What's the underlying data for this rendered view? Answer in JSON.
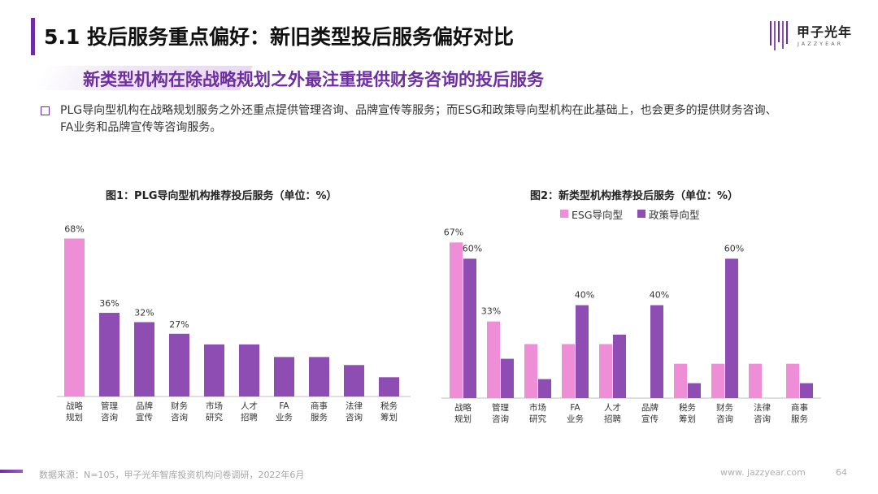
{
  "header": {
    "title": "5.1 投后服务重点偏好：新旧类型投后服务偏好对比",
    "logo_text": "甲子光年",
    "logo_sub": "JAZZYEAR"
  },
  "subtitle": "新类型机构在除战略规划之外最注重提供财务咨询的投后服务",
  "bullet": {
    "line1": "PLG导向型机构在战略规划服务之外还重点提供管理咨询、品牌宣传等服务；而ESG和政策导向型机构在此基础上，也会更多的提供财务咨询、",
    "line2": "FA业务和品牌宣传等咨询服务。"
  },
  "chart_data": [
    {
      "type": "bar",
      "title": "图1：PLG导向型机构推荐投后服务（单位：%）",
      "categories": [
        [
          "战略",
          "规划"
        ],
        [
          "管理",
          "咨询"
        ],
        [
          "品牌",
          "宣传"
        ],
        [
          "财务",
          "咨询"
        ],
        [
          "市场",
          "研究"
        ],
        [
          "人才",
          "招聘"
        ],
        [
          "FA",
          "业务"
        ],
        [
          "商事",
          "服务"
        ],
        [
          "法律",
          "咨询"
        ],
        [
          "税务",
          "筹划"
        ]
      ],
      "series": [
        {
          "values": [
            68,
            36,
            32,
            27,
            null,
            null,
            null,
            null,
            null,
            null
          ],
          "colors": [
            "#ee8ed6",
            "#8e4db3",
            "#8e4db3",
            "#8e4db3",
            "#8e4db3",
            "#8e4db3",
            "#8e4db3",
            "#8e4db3",
            "#8e4db3",
            "#8e4db3"
          ]
        }
      ],
      "data_labels": [
        "68%",
        "36%",
        "32%",
        "27%",
        "",
        "",
        "",
        "",
        "",
        ""
      ]
    },
    {
      "type": "bar",
      "title": "图2：新类型机构推荐投后服务（单位：%）",
      "categories": [
        [
          "战略",
          "规划"
        ],
        [
          "管理",
          "咨询"
        ],
        [
          "市场",
          "研究"
        ],
        [
          "FA",
          "业务"
        ],
        [
          "人才",
          "招聘"
        ],
        [
          "品牌",
          "宣传"
        ],
        [
          "税务",
          "筹划"
        ],
        [
          "财务",
          "咨询"
        ],
        [
          "法律",
          "咨询"
        ],
        [
          "商事",
          "服务"
        ]
      ],
      "series": [
        {
          "name": "ESG导向型",
          "color": "#ee8ed6",
          "values": [
            67,
            33,
            null,
            null,
            null,
            null,
            null,
            null,
            null,
            null
          ],
          "data_labels": [
            "67%",
            "33%",
            "",
            "",
            "",
            "",
            "",
            "",
            "",
            ""
          ]
        },
        {
          "name": "政策导向型",
          "color": "#8e4db3",
          "values": [
            60,
            null,
            null,
            40,
            null,
            40,
            null,
            60,
            null,
            null
          ],
          "data_labels": [
            "60%",
            "",
            "",
            "40%",
            "",
            "40%",
            "",
            "60%",
            "",
            ""
          ]
        }
      ]
    }
  ],
  "footer": {
    "source": "数据来源：N=105，甲子光年智库投资机构问卷调研，2022年6月",
    "website": "www. jazzyear.com",
    "page": "64"
  }
}
